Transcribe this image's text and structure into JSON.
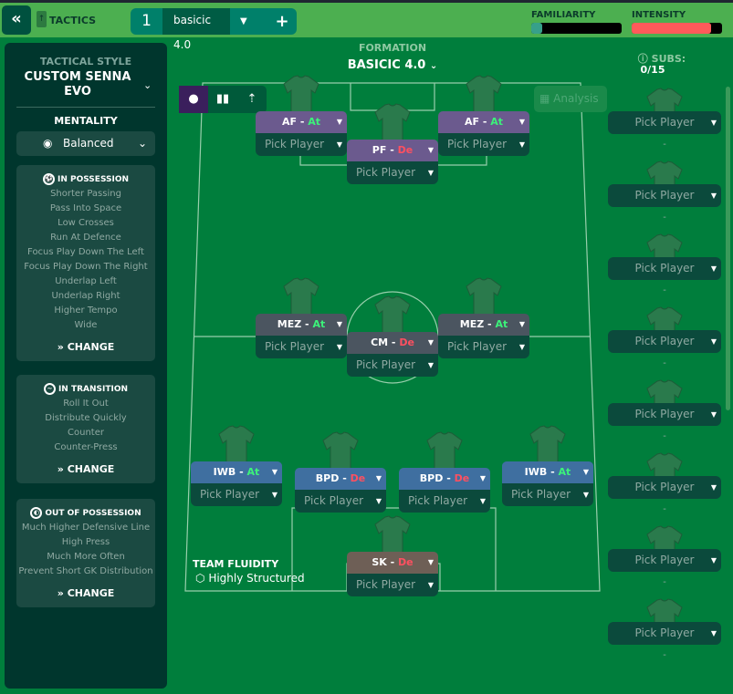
{
  "topbar": {
    "back_icon": "double-chevron-left",
    "tactics_label": "TACTICS",
    "tab_number": "1",
    "tab_name": "basicic 4.0",
    "add_label": "+",
    "familiarity_label": "FAMILIARITY",
    "familiarity_level": 0.12,
    "intensity_label": "INTENSITY",
    "intensity_level": 0.88,
    "colors": {
      "bar": "#4caf50",
      "familiarity": "#37a08a",
      "intensity": "#ff5a5a"
    }
  },
  "left": {
    "tactical_style_label": "TACTICAL STYLE",
    "tactical_style": "CUSTOM SENNA EVO",
    "mentality_label": "MENTALITY",
    "mentality": "Balanced",
    "sections": [
      {
        "title": "IN POSSESSION",
        "items": [
          "Shorter Passing",
          "Pass Into Space",
          "Low Crosses",
          "Run At Defence",
          "Focus Play Down The Left",
          "Focus Play Down The Right",
          "Underlap Left",
          "Underlap Right",
          "Higher Tempo",
          "Wide"
        ],
        "change": "CHANGE"
      },
      {
        "title": "IN TRANSITION",
        "items": [
          "Roll It Out",
          "Distribute Quickly",
          "Counter",
          "Counter-Press"
        ],
        "change": "CHANGE"
      },
      {
        "title": "OUT OF POSSESSION",
        "items": [
          "Much Higher Defensive Line",
          "High Press",
          "Much More Often",
          "Prevent Short GK Distribution"
        ],
        "change": "CHANGE"
      }
    ]
  },
  "formation": {
    "label": "FORMATION",
    "name": "BASICIC 4.0",
    "analysis": "Analysis"
  },
  "players": [
    {
      "role": "AF",
      "duty": "At",
      "pick": "Pick Player",
      "group": "att"
    },
    {
      "role": "PF",
      "duty": "De",
      "pick": "Pick Player",
      "group": "att"
    },
    {
      "role": "AF",
      "duty": "At",
      "pick": "Pick Player",
      "group": "att"
    },
    {
      "role": "MEZ",
      "duty": "At",
      "pick": "Pick Player",
      "group": "mid"
    },
    {
      "role": "CM",
      "duty": "De",
      "pick": "Pick Player",
      "group": "mid"
    },
    {
      "role": "MEZ",
      "duty": "At",
      "pick": "Pick Player",
      "group": "mid"
    },
    {
      "role": "IWB",
      "duty": "At",
      "pick": "Pick Player",
      "group": "def"
    },
    {
      "role": "BPD",
      "duty": "De",
      "pick": "Pick Player",
      "group": "def"
    },
    {
      "role": "BPD",
      "duty": "De",
      "pick": "Pick Player",
      "group": "def"
    },
    {
      "role": "IWB",
      "duty": "At",
      "pick": "Pick Player",
      "group": "def"
    },
    {
      "role": "SK",
      "duty": "De",
      "pick": "Pick Player",
      "group": "gk"
    }
  ],
  "role_colors": {
    "att": "#6b5a8e",
    "mid": "#4b5560",
    "def": "#3f6fa0",
    "gk": "#6e5f56"
  },
  "fluidity": {
    "label": "TEAM FLUIDITY",
    "value": "Highly Structured"
  },
  "subs": {
    "label": "SUBS:",
    "count": "0/15",
    "items": [
      {
        "pick": "Pick Player",
        "note": "-"
      },
      {
        "pick": "Pick Player",
        "note": "-"
      },
      {
        "pick": "Pick Player",
        "note": "-"
      },
      {
        "pick": "Pick Player",
        "note": "-"
      },
      {
        "pick": "Pick Player",
        "note": "-"
      },
      {
        "pick": "Pick Player",
        "note": "-"
      },
      {
        "pick": "Pick Player",
        "note": "-"
      },
      {
        "pick": "Pick Player",
        "note": "-"
      }
    ]
  }
}
